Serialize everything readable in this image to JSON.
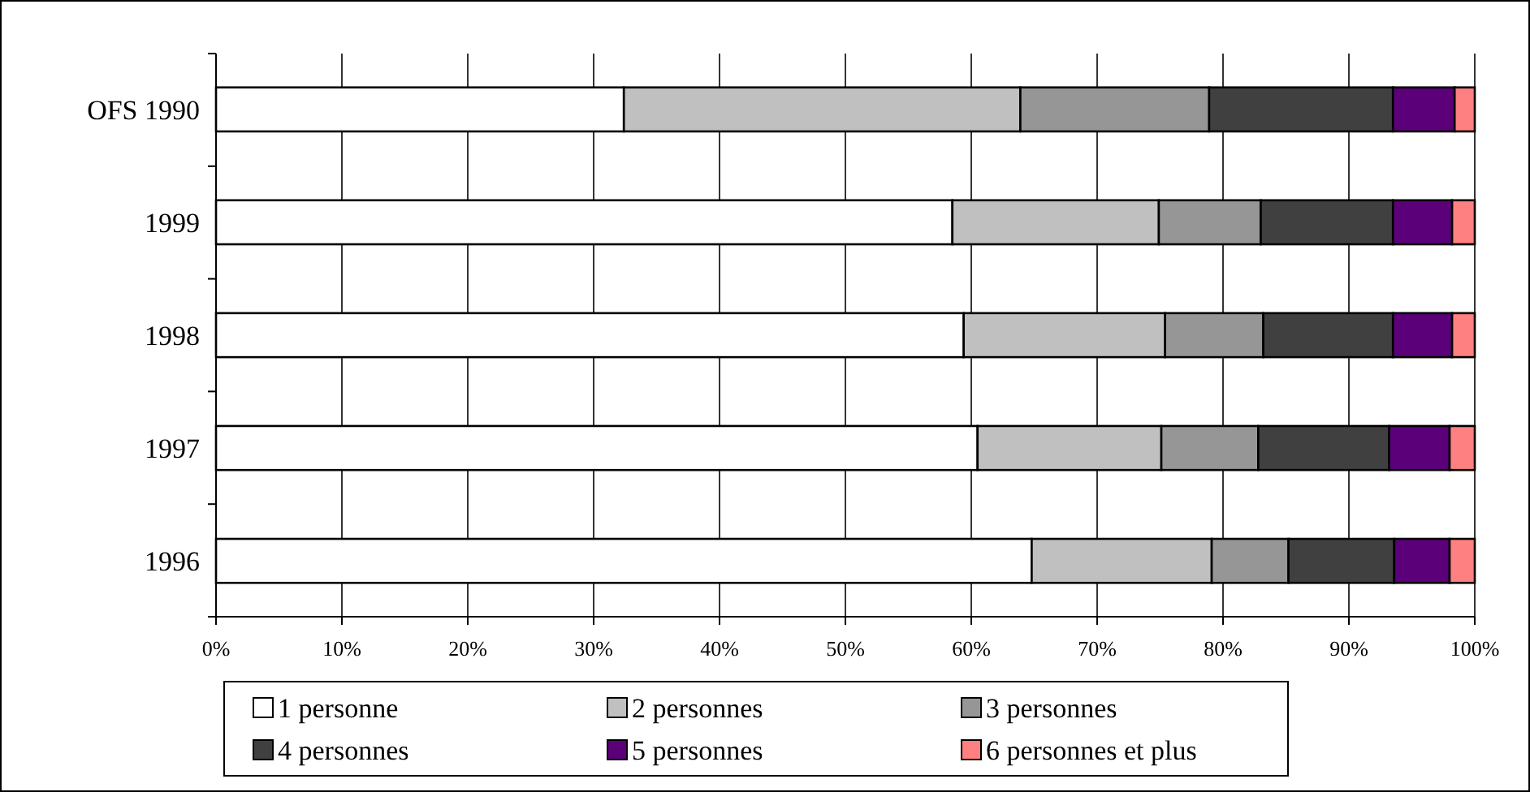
{
  "chart_data": {
    "type": "bar",
    "orientation": "horizontal",
    "stacked": true,
    "categories": [
      "OFS 1990",
      "1999",
      "1998",
      "1997",
      "1996"
    ],
    "series": [
      {
        "name": "1 personne",
        "color": "#ffffff",
        "values": [
          32.4,
          58.5,
          59.4,
          60.5,
          64.8
        ]
      },
      {
        "name": "2 personnes",
        "color": "#c0c0c0",
        "values": [
          31.5,
          16.4,
          16.0,
          14.6,
          14.3
        ]
      },
      {
        "name": "3 personnes",
        "color": "#969696",
        "values": [
          15.0,
          8.1,
          7.8,
          7.7,
          6.1
        ]
      },
      {
        "name": "4 personnes",
        "color": "#404040",
        "values": [
          14.6,
          10.5,
          10.3,
          10.4,
          8.4
        ]
      },
      {
        "name": "5 personnes",
        "color": "#5c007a",
        "values": [
          4.9,
          4.7,
          4.7,
          4.8,
          4.4
        ]
      },
      {
        "name": "6 personnes et plus",
        "color": "#ff8080",
        "values": [
          1.6,
          1.8,
          1.8,
          2.0,
          2.0
        ]
      }
    ],
    "xlim": [
      0,
      100
    ],
    "xticks": [
      {
        "value": 0,
        "label": "0%"
      },
      {
        "value": 10,
        "label": "10%"
      },
      {
        "value": 20,
        "label": "20%"
      },
      {
        "value": 30,
        "label": "30%"
      },
      {
        "value": 40,
        "label": "40%"
      },
      {
        "value": 50,
        "label": "50%"
      },
      {
        "value": 60,
        "label": "60%"
      },
      {
        "value": 70,
        "label": "70%"
      },
      {
        "value": 80,
        "label": "80%"
      },
      {
        "value": 90,
        "label": "90%"
      },
      {
        "value": 100,
        "label": "100%"
      }
    ],
    "grid": "x",
    "legend": "bottom"
  }
}
